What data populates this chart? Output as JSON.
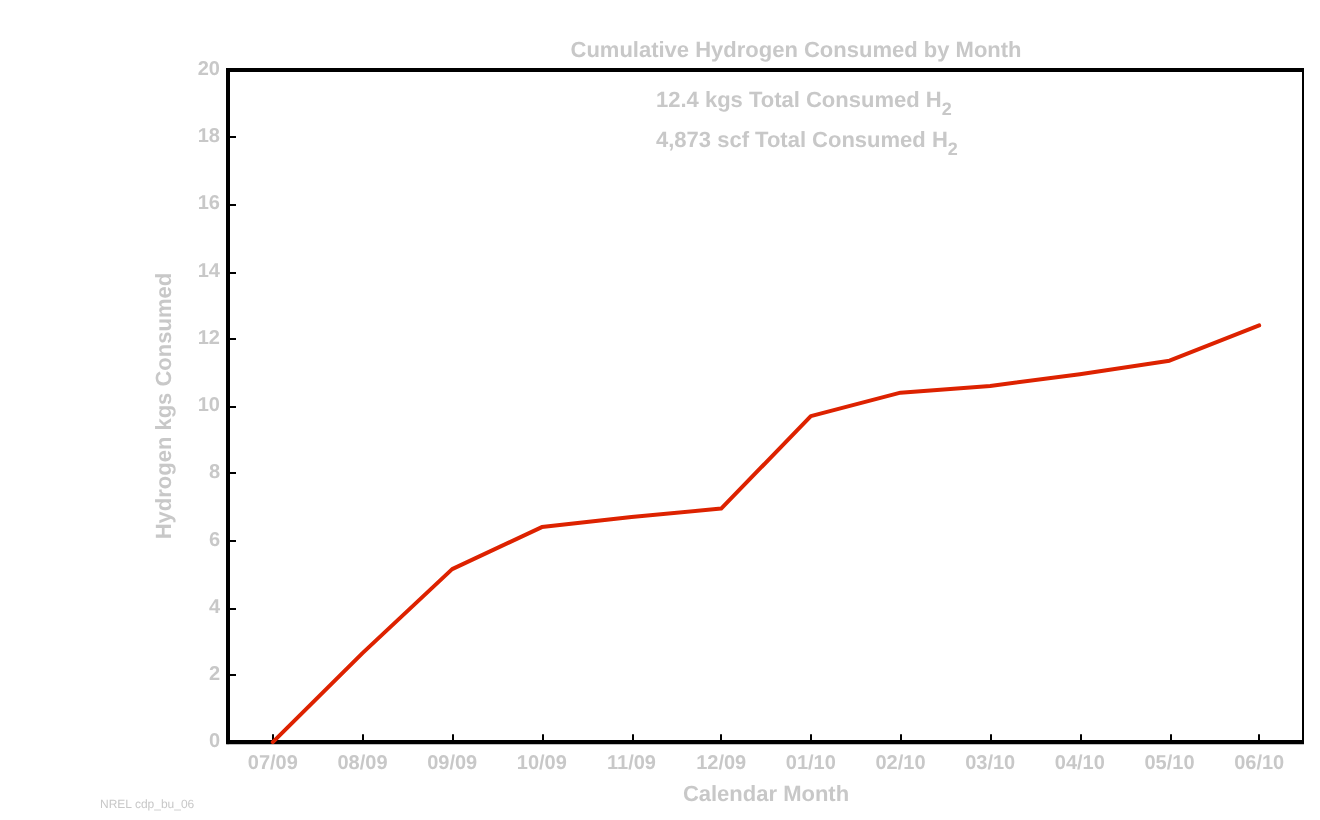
{
  "chart_data": {
    "type": "line",
    "title": "Cumulative Hydrogen Consumed by Month",
    "xlabel": "Calendar Month",
    "ylabel": "Hydrogen kgs Consumed",
    "categories": [
      "07/09",
      "08/09",
      "09/09",
      "10/09",
      "11/09",
      "12/09",
      "01/10",
      "02/10",
      "03/10",
      "04/10",
      "05/10",
      "06/10"
    ],
    "series": [
      {
        "color": "#dd2200",
        "values": [
          0,
          2.65,
          5.15,
          6.4,
          6.7,
          6.95,
          9.7,
          10.4,
          10.6,
          10.95,
          11.35,
          12.4
        ]
      }
    ],
    "ylim": [
      0,
      20
    ],
    "yticks": [
      0,
      2,
      4,
      6,
      8,
      10,
      12,
      14,
      16,
      18,
      20
    ],
    "grid": false,
    "marker": "none",
    "line_style": "solid",
    "annotations": [
      "12.4 kgs Total Consumed H$_{2}$",
      "4,873 scf Total Consumed H$_{2}$",
      "NREL cdp_bu_06"
    ]
  }
}
